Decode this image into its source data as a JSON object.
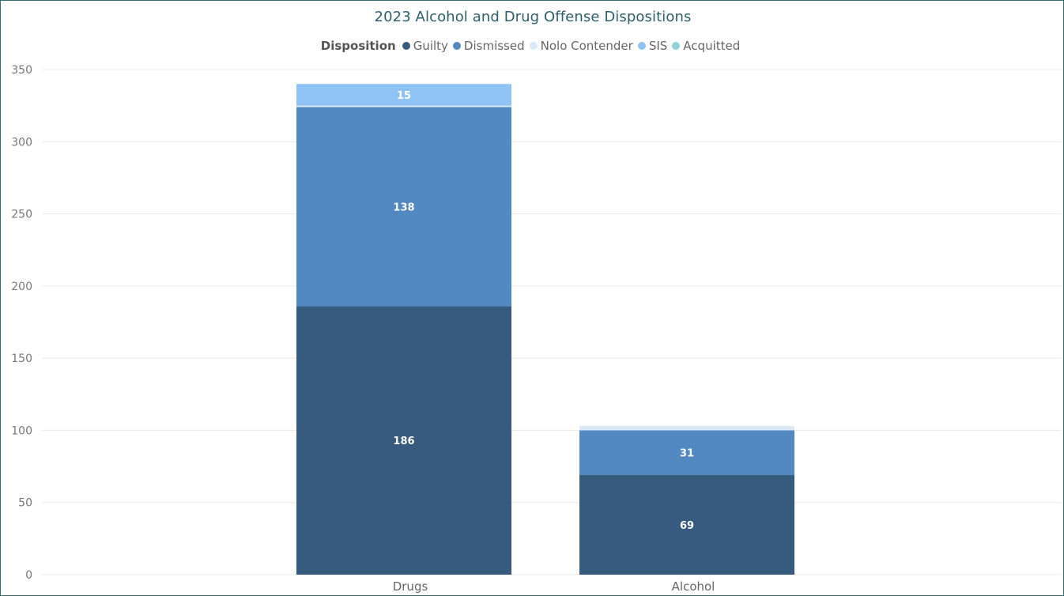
{
  "chart_data": {
    "type": "bar",
    "stacked": true,
    "title": "2023 Alcohol and Drug Offense Dispositions",
    "legend_title": "Disposition",
    "legend_position": "top-center",
    "categories": [
      "Drugs",
      "Alcohol"
    ],
    "series": [
      {
        "name": "Guilty",
        "color": "#375a7f",
        "values": [
          186,
          69
        ],
        "labels": [
          "186",
          "69"
        ]
      },
      {
        "name": "Dismissed",
        "color": "#5289c0",
        "values": [
          138,
          31
        ],
        "labels": [
          "138",
          "31"
        ]
      },
      {
        "name": "Nolo Contender",
        "color": "#dbe9f6",
        "values": [
          1,
          3
        ],
        "labels": [
          "",
          ""
        ]
      },
      {
        "name": "SIS",
        "color": "#8fc3f5",
        "values": [
          15,
          0
        ],
        "labels": [
          "15",
          ""
        ]
      },
      {
        "name": "Acquitted",
        "color": "#8fd1d6",
        "values": [
          0,
          0
        ],
        "labels": [
          "",
          ""
        ]
      }
    ],
    "ylim": [
      0,
      350
    ],
    "yticks": [
      "0",
      "50",
      "100",
      "150",
      "200",
      "250",
      "300",
      "350"
    ],
    "grid": true,
    "xlabel": "",
    "ylabel": ""
  }
}
